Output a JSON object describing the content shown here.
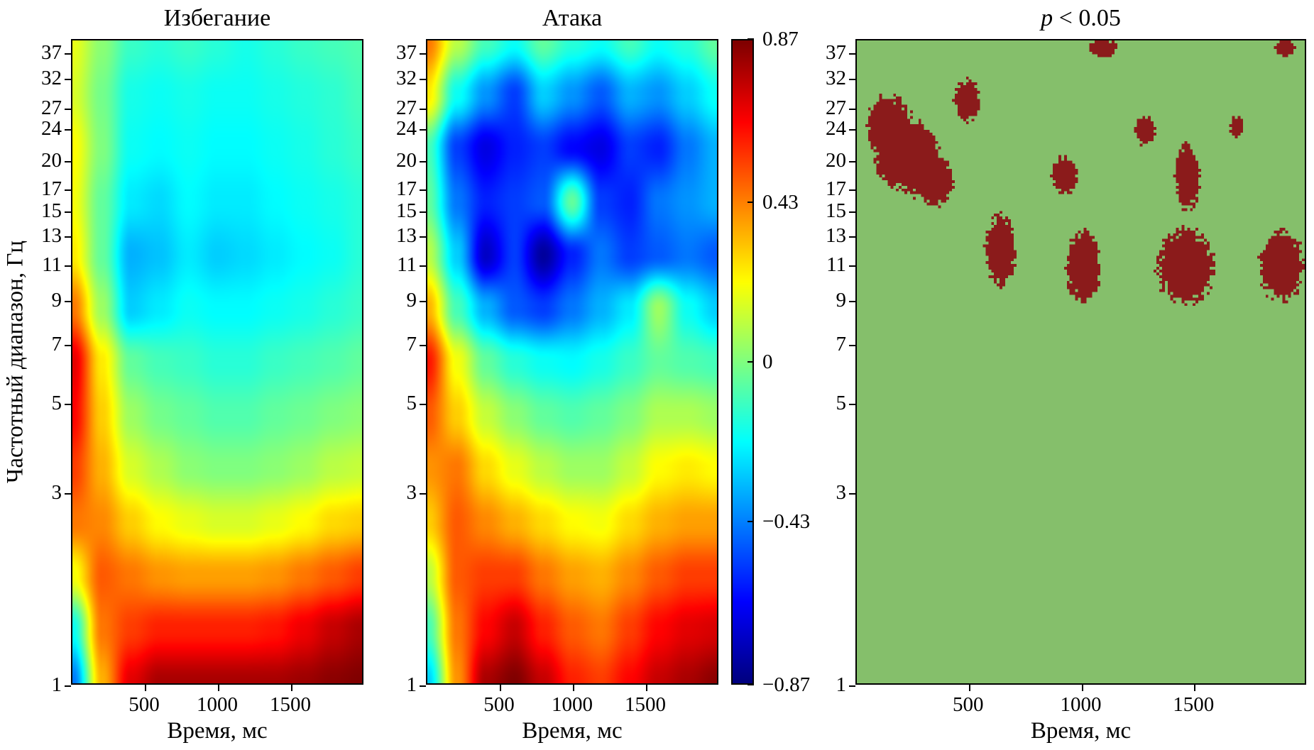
{
  "figure": {
    "xlabel": "Время, мс",
    "ylabel": "Частотный диапазон, Гц"
  },
  "axes": {
    "yticks": [
      37,
      32,
      27,
      24,
      20,
      17,
      15,
      13,
      11,
      9,
      7,
      5,
      3,
      1
    ],
    "xticks": [
      500,
      1000,
      1500
    ],
    "x_range_ms": [
      0,
      2000
    ],
    "y_range_hz": [
      1,
      40
    ],
    "y_scale": "log"
  },
  "colorbar": {
    "tick_labels": [
      "0.87",
      "0.43",
      "0",
      "−0.43",
      "−0.87"
    ],
    "tick_values": [
      0.87,
      0.43,
      0,
      -0.43,
      -0.87
    ],
    "min": -0.87,
    "max": 0.87
  },
  "chart_data": [
    {
      "type": "heatmap",
      "title": "Избегание",
      "xlabel": "Время, мс",
      "ylabel": "Частотный диапазон, Гц",
      "x_range_ms": [
        0,
        2000
      ],
      "y_range_hz": [
        1,
        40
      ],
      "y_scale": "log",
      "value_range": [
        -0.87,
        0.87
      ],
      "colormap": "jet",
      "grid_t_ms": [
        0,
        200,
        400,
        600,
        800,
        1000,
        1200,
        1400,
        1600,
        1800,
        2000
      ],
      "grid_f_hz": [
        40,
        29.5,
        21.7,
        16,
        11.8,
        8.7,
        6.4,
        4.7,
        3.5,
        2.6,
        1.9,
        1.4,
        1
      ],
      "values": [
        [
          0.18,
          0.02,
          -0.12,
          -0.15,
          -0.12,
          -0.15,
          -0.18,
          -0.15,
          -0.12,
          -0.1,
          -0.08
        ],
        [
          0.15,
          -0.02,
          -0.18,
          -0.2,
          -0.18,
          -0.2,
          -0.2,
          -0.18,
          -0.16,
          -0.14,
          -0.1
        ],
        [
          0.22,
          0.0,
          -0.2,
          -0.22,
          -0.2,
          -0.22,
          -0.22,
          -0.2,
          -0.18,
          -0.15,
          -0.12
        ],
        [
          0.2,
          -0.05,
          -0.25,
          -0.28,
          -0.22,
          -0.25,
          -0.25,
          -0.22,
          -0.2,
          -0.18,
          -0.15
        ],
        [
          0.25,
          -0.05,
          -0.35,
          -0.32,
          -0.25,
          -0.3,
          -0.28,
          -0.25,
          -0.22,
          -0.2,
          -0.15
        ],
        [
          0.45,
          0.05,
          -0.3,
          -0.25,
          -0.2,
          -0.22,
          -0.22,
          -0.2,
          -0.18,
          -0.15,
          -0.12
        ],
        [
          0.7,
          0.25,
          -0.05,
          -0.1,
          -0.12,
          -0.15,
          -0.15,
          -0.12,
          -0.1,
          -0.08,
          -0.05
        ],
        [
          0.65,
          0.3,
          0.05,
          -0.02,
          -0.05,
          -0.08,
          -0.08,
          -0.05,
          -0.03,
          0.0,
          0.02
        ],
        [
          0.55,
          0.35,
          0.15,
          0.08,
          0.02,
          0.0,
          0.0,
          0.02,
          0.05,
          0.1,
          0.12
        ],
        [
          0.45,
          0.42,
          0.3,
          0.22,
          0.18,
          0.15,
          0.15,
          0.18,
          0.22,
          0.28,
          0.3
        ],
        [
          0.2,
          0.5,
          0.45,
          0.4,
          0.38,
          0.38,
          0.38,
          0.4,
          0.45,
          0.5,
          0.55
        ],
        [
          -0.2,
          0.45,
          0.55,
          0.6,
          0.6,
          0.6,
          0.6,
          0.62,
          0.68,
          0.75,
          0.8
        ],
        [
          -0.45,
          0.35,
          0.7,
          0.8,
          0.8,
          0.8,
          0.8,
          0.8,
          0.82,
          0.85,
          0.87
        ]
      ]
    },
    {
      "type": "heatmap",
      "title": "Атака",
      "xlabel": "Время, мс",
      "ylabel": "Частотный диапазон, Гц",
      "x_range_ms": [
        0,
        2000
      ],
      "y_range_hz": [
        1,
        40
      ],
      "y_scale": "log",
      "value_range": [
        -0.87,
        0.87
      ],
      "colormap": "jet",
      "grid_t_ms": [
        0,
        200,
        400,
        600,
        800,
        1000,
        1200,
        1400,
        1600,
        1800,
        2000
      ],
      "grid_f_hz": [
        40,
        29.5,
        21.7,
        16,
        11.8,
        8.7,
        6.4,
        4.7,
        3.5,
        2.6,
        1.9,
        1.4,
        1
      ],
      "values": [
        [
          0.45,
          0.1,
          -0.1,
          -0.2,
          -0.05,
          -0.15,
          -0.2,
          -0.1,
          -0.2,
          -0.15,
          -0.05
        ],
        [
          0.25,
          -0.2,
          -0.4,
          -0.55,
          -0.3,
          -0.4,
          -0.5,
          -0.35,
          -0.4,
          -0.3,
          -0.2
        ],
        [
          -0.1,
          -0.55,
          -0.7,
          -0.6,
          -0.55,
          -0.65,
          -0.7,
          -0.55,
          -0.6,
          -0.45,
          -0.35
        ],
        [
          -0.05,
          -0.45,
          -0.6,
          -0.55,
          -0.5,
          -0.05,
          -0.55,
          -0.6,
          -0.45,
          -0.4,
          -0.35
        ],
        [
          0.1,
          -0.3,
          -0.75,
          -0.55,
          -0.82,
          -0.6,
          -0.45,
          -0.55,
          -0.5,
          -0.45,
          -0.5
        ],
        [
          0.35,
          -0.1,
          -0.35,
          -0.5,
          -0.55,
          -0.45,
          -0.35,
          -0.25,
          0.05,
          -0.2,
          -0.3
        ],
        [
          0.62,
          0.2,
          -0.05,
          -0.15,
          -0.2,
          -0.22,
          -0.18,
          -0.12,
          -0.05,
          -0.08,
          -0.1
        ],
        [
          0.5,
          0.3,
          0.12,
          0.02,
          -0.05,
          -0.08,
          -0.05,
          0.0,
          0.08,
          0.08,
          0.05
        ],
        [
          0.4,
          0.45,
          0.28,
          0.18,
          0.1,
          0.05,
          0.05,
          0.12,
          0.22,
          0.25,
          0.22
        ],
        [
          0.3,
          0.5,
          0.42,
          0.35,
          0.28,
          0.22,
          0.2,
          0.28,
          0.35,
          0.38,
          0.38
        ],
        [
          0.1,
          0.5,
          0.55,
          0.55,
          0.45,
          0.38,
          0.35,
          0.42,
          0.5,
          0.55,
          0.55
        ],
        [
          -0.1,
          0.45,
          0.65,
          0.75,
          0.6,
          0.5,
          0.45,
          0.55,
          0.65,
          0.7,
          0.72
        ],
        [
          -0.3,
          0.4,
          0.8,
          0.87,
          0.75,
          0.6,
          0.55,
          0.65,
          0.75,
          0.8,
          0.85
        ]
      ]
    },
    {
      "type": "heatmap",
      "style": "significance_mask",
      "title": "p < 0.05",
      "title_parts": {
        "italic": "p",
        "rest": " < 0.05"
      },
      "xlabel": "Время, мс",
      "x_range_ms": [
        0,
        2000
      ],
      "y_range_hz": [
        1,
        40
      ],
      "y_scale": "log",
      "nonsignificant_color": "#85BF6B",
      "significant_color": "#8B1B1B",
      "clusters": [
        {
          "t_ms": 1100,
          "f_hz": 38.5,
          "rt_ms": 60,
          "r_logf": 0.022
        },
        {
          "t_ms": 1920,
          "f_hz": 38.5,
          "rt_ms": 45,
          "r_logf": 0.02
        },
        {
          "t_ms": 140,
          "f_hz": 24.5,
          "rt_ms": 100,
          "r_logf": 0.075
        },
        {
          "t_ms": 250,
          "f_hz": 20.5,
          "rt_ms": 110,
          "r_logf": 0.09
        },
        {
          "t_ms": 345,
          "f_hz": 18,
          "rt_ms": 80,
          "r_logf": 0.06
        },
        {
          "t_ms": 160,
          "f_hz": 20,
          "rt_ms": 80,
          "r_logf": 0.06
        },
        {
          "t_ms": 490,
          "f_hz": 28.5,
          "rt_ms": 55,
          "r_logf": 0.05
        },
        {
          "t_ms": 640,
          "f_hz": 12,
          "rt_ms": 65,
          "r_logf": 0.085
        },
        {
          "t_ms": 930,
          "f_hz": 18.5,
          "rt_ms": 55,
          "r_logf": 0.045
        },
        {
          "t_ms": 1010,
          "f_hz": 11,
          "rt_ms": 75,
          "r_logf": 0.085
        },
        {
          "t_ms": 1290,
          "f_hz": 24,
          "rt_ms": 45,
          "r_logf": 0.035
        },
        {
          "t_ms": 1480,
          "f_hz": 18.5,
          "rt_ms": 55,
          "r_logf": 0.08
        },
        {
          "t_ms": 1470,
          "f_hz": 11,
          "rt_ms": 120,
          "r_logf": 0.09
        },
        {
          "t_ms": 1900,
          "f_hz": 11,
          "rt_ms": 95,
          "r_logf": 0.085
        },
        {
          "t_ms": 1700,
          "f_hz": 24.5,
          "rt_ms": 30,
          "r_logf": 0.025
        }
      ]
    }
  ]
}
